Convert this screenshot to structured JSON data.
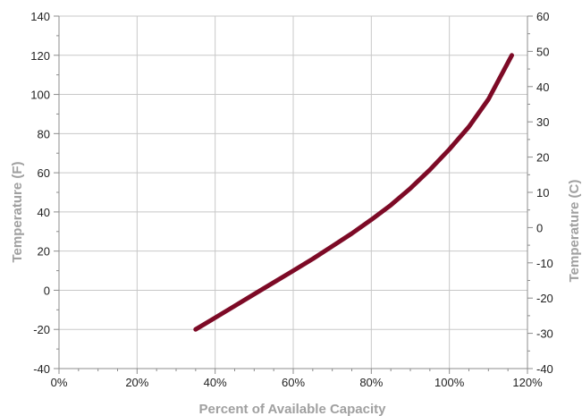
{
  "chart_data": {
    "type": "line",
    "title": "",
    "xlabel": "Percent of Available Capacity",
    "ylabel": "Temperature (F)",
    "y2label": "Temperature  (C)",
    "xlim": [
      0,
      120
    ],
    "ylim": [
      -40,
      140
    ],
    "y2lim": [
      -40,
      60
    ],
    "x_ticks": [
      0,
      20,
      40,
      60,
      80,
      100,
      120
    ],
    "x_tick_labels": [
      "0%",
      "20%",
      "40%",
      "60%",
      "80%",
      "100%",
      "120%"
    ],
    "y_ticks": [
      -40,
      -20,
      0,
      20,
      40,
      60,
      80,
      100,
      120,
      140
    ],
    "y_tick_labels": [
      "-40",
      "-20",
      "0",
      "20",
      "40",
      "60",
      "80",
      "100",
      "120",
      "140"
    ],
    "y2_ticks": [
      -40,
      -30,
      -20,
      -10,
      0,
      10,
      20,
      30,
      40,
      50,
      60
    ],
    "y2_tick_labels": [
      "-40",
      "-30",
      "-20",
      "-10",
      "0",
      "10",
      "20",
      "30",
      "40",
      "50",
      "60"
    ],
    "grid": true,
    "legend": "none",
    "series": [
      {
        "color": "#7d0a26",
        "x": [
          35,
          40,
          45,
          50,
          55,
          60,
          65,
          70,
          75,
          80,
          85,
          90,
          95,
          100,
          105,
          110,
          116
        ],
        "y": [
          -20,
          -14,
          -8,
          -2,
          4,
          10,
          16,
          22.5,
          29,
          36,
          43.5,
          52,
          61.5,
          72,
          83.5,
          97.5,
          120
        ]
      }
    ]
  }
}
